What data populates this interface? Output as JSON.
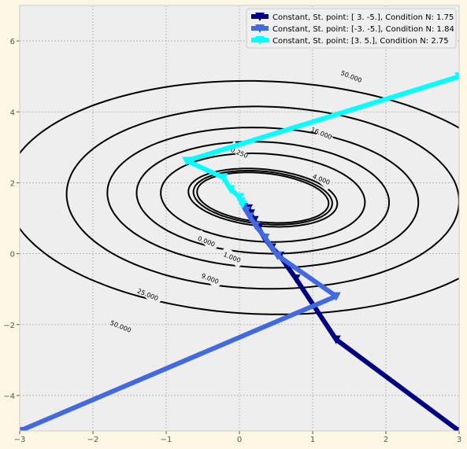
{
  "chart_data": {
    "type": "line",
    "title": "",
    "xlabel": "",
    "ylabel": "",
    "xlim": [
      -3,
      3
    ],
    "ylim": [
      -5,
      7
    ],
    "x_ticks": [
      -3,
      -2,
      -1,
      0,
      1,
      2,
      3
    ],
    "y_ticks": [
      -4,
      -2,
      0,
      2,
      4,
      6
    ],
    "grid": true,
    "legend_position": "top-right",
    "background_color": "#eeeeee",
    "figure_color": "#fdf6e3",
    "contours": {
      "center": [
        0.32,
        1.58
      ],
      "angle_deg": -22,
      "levels": [
        {
          "label": "0.250",
          "a": 0.93,
          "b": 0.67
        },
        {
          "label": "0.000",
          "a": 0.98,
          "b": 0.72
        },
        {
          "label": "1.000",
          "a": 1.05,
          "b": 0.78
        },
        {
          "label": "4.000",
          "a": 1.42,
          "b": 1.22
        },
        {
          "label": "9.000",
          "a": 1.75,
          "b": 1.55
        },
        {
          "label": "16.000",
          "a": 2.15,
          "b": 1.95
        },
        {
          "label": "25.000",
          "a": 2.7,
          "b": 2.55
        },
        {
          "label": "50.000",
          "a": 3.55,
          "b": 3.25
        }
      ],
      "label_points": [
        {
          "label": "50.000",
          "x": 1.53,
          "y": 5.0
        },
        {
          "label": "16.000",
          "x": 1.12,
          "y": 3.4
        },
        {
          "label": "4.000",
          "x": 1.12,
          "y": 2.1
        },
        {
          "label": "0.250",
          "x": 0.0,
          "y": 2.85
        },
        {
          "label": "0.000",
          "x": -0.45,
          "y": 0.35
        },
        {
          "label": "1.000",
          "x": -0.1,
          "y": -0.1
        },
        {
          "label": "9.000",
          "x": -0.4,
          "y": -0.7
        },
        {
          "label": "25.000",
          "x": -1.25,
          "y": -1.15
        },
        {
          "label": "50.000",
          "x": -1.62,
          "y": -2.05
        }
      ]
    },
    "series": [
      {
        "name": "Constant, St. point: [ 3. -5.], Condition N: 1.75",
        "color": "#000080",
        "x": [
          3.0,
          1.32,
          0.77,
          0.55,
          0.44,
          0.34,
          0.26,
          0.2,
          0.15,
          0.12
        ],
        "y": [
          -5.0,
          -2.42,
          -0.7,
          -0.05,
          0.18,
          0.45,
          0.73,
          0.95,
          1.14,
          1.28
        ]
      },
      {
        "name": "Constant, St. point: [-3. -5.], Condition N: 1.84",
        "color": "#4169e1",
        "x": [
          -3.0,
          1.32,
          0.52,
          0.35,
          0.22,
          0.14,
          0.09,
          0.06
        ],
        "y": [
          -5.0,
          -1.2,
          -0.05,
          0.45,
          0.8,
          1.05,
          1.22,
          1.32
        ]
      },
      {
        "name": "Constant, St. point: [3. 5.], Condition N: 2.75",
        "color": "#00ffff",
        "x": [
          3.0,
          -0.72,
          -0.22,
          -0.12,
          0.0,
          0.02,
          0.04
        ],
        "y": [
          5.0,
          2.62,
          2.15,
          1.82,
          1.6,
          1.48,
          1.4
        ]
      }
    ]
  }
}
